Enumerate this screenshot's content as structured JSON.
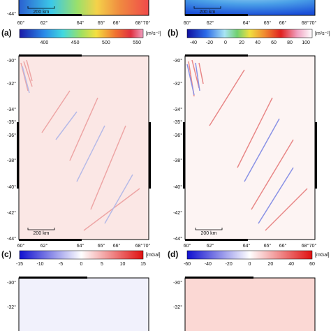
{
  "maps": [
    {
      "scale_bar": "200 km",
      "y_ticks": [
        "-44°"
      ],
      "x_ticks": [
        "60°",
        "62°",
        "64°",
        "65°",
        "66°",
        "68°",
        "70°"
      ]
    },
    {
      "scale_bar": "200 km",
      "x_ticks": [
        "60°",
        "62°",
        "64°",
        "65°",
        "66°",
        "68°",
        "70°"
      ]
    },
    {
      "scale_bar": "200 km",
      "y_ticks": [
        "-30°",
        "-32°",
        "-34°",
        "-35°",
        "-36°",
        "-38°",
        "-40°",
        "-42°",
        "-44°"
      ],
      "x_ticks": [
        "60°",
        "62°",
        "64°",
        "65°",
        "66°",
        "68°",
        "70°"
      ]
    },
    {
      "scale_bar": "200 km",
      "y_ticks": [
        "-30°",
        "-32°",
        "-34°",
        "-35°",
        "-36°",
        "-38°",
        "-40°",
        "-42°",
        "-44°"
      ],
      "x_ticks": [
        "60°",
        "62°",
        "64°",
        "65°",
        "66°",
        "68°",
        "70°"
      ]
    },
    {
      "y_ticks": [
        "-30°",
        "-32°"
      ]
    },
    {
      "y_ticks": [
        "-30°",
        "-32°"
      ]
    }
  ],
  "colorbars": [
    {
      "label": "(a)",
      "ticks": [
        "400",
        "450",
        "500",
        "550"
      ],
      "unit": "[m²s⁻²]"
    },
    {
      "label": "(b)",
      "ticks": [
        "-40",
        "-20",
        "0",
        "20",
        "40",
        "60",
        "80",
        "100"
      ],
      "unit": "[m²s⁻²]"
    },
    {
      "label": "(c)",
      "ticks": [
        "-15",
        "-10",
        "-5",
        "0",
        "5",
        "10",
        "15"
      ],
      "unit": "[mGal]"
    },
    {
      "label": "(d)",
      "ticks": [
        "-60",
        "-40",
        "-20",
        "0",
        "20",
        "40",
        "60"
      ],
      "unit": "[mGal]"
    }
  ]
}
